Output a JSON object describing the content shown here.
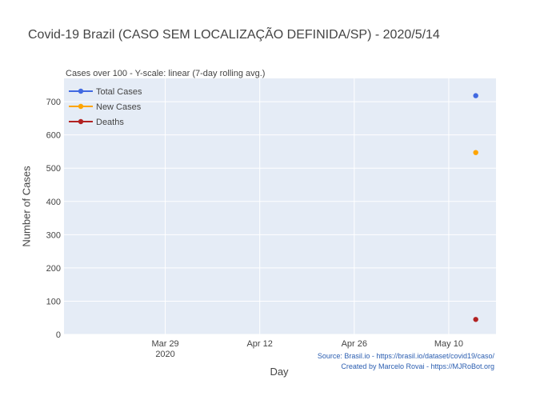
{
  "chart_data": {
    "type": "scatter",
    "title": "Covid-19 Brazil (CASO SEM LOCALIZAÇÃO DEFINIDA/SP) - 2020/5/14",
    "subtitle": "Cases over 100 - Y-scale: linear (7-day rolling avg.)",
    "xlabel": "Day",
    "ylabel": "Number of Cases",
    "x_ticks": [
      {
        "date": "2020-03-29",
        "label": "Mar 29",
        "sublabel": "2020"
      },
      {
        "date": "2020-04-12",
        "label": "Apr 12",
        "sublabel": ""
      },
      {
        "date": "2020-04-26",
        "label": "Apr 26",
        "sublabel": ""
      },
      {
        "date": "2020-05-10",
        "label": "May 10",
        "sublabel": ""
      }
    ],
    "xlim": [
      "2020-03-14",
      "2020-05-17"
    ],
    "y_ticks": [
      0,
      100,
      200,
      300,
      400,
      500,
      600,
      700
    ],
    "ylim": [
      0,
      770
    ],
    "grid": true,
    "legend_position": "top-left",
    "series": [
      {
        "name": "Total Cases",
        "color": "#4169e1",
        "points": [
          {
            "x": "2020-05-14",
            "y": 718
          }
        ]
      },
      {
        "name": "New Cases",
        "color": "#ffa500",
        "points": [
          {
            "x": "2020-05-14",
            "y": 547
          }
        ]
      },
      {
        "name": "Deaths",
        "color": "#b22222",
        "points": [
          {
            "x": "2020-05-14",
            "y": 45
          }
        ]
      }
    ],
    "source_note": "Source: Brasil.io - https://brasil.io/dataset/covid19/caso/",
    "credit_note": "Created by Marcelo Rovai - https://MJRoBot.org",
    "plot_background": "#e5ecf6",
    "grid_color": "#ffffff"
  }
}
